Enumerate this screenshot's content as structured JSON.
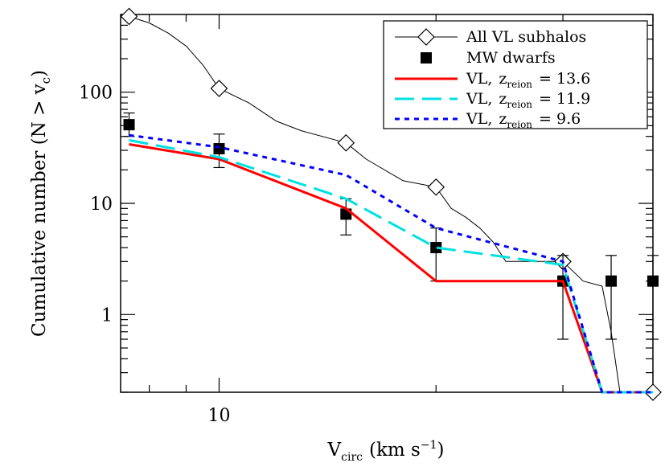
{
  "chart_data": {
    "type": "line",
    "xscale": "log",
    "yscale": "log",
    "xlim": [
      7.3,
      40
    ],
    "ylim": [
      0.2,
      500
    ],
    "xlabel": {
      "main": "V",
      "sub": "circ",
      "rest": "(km s",
      "sup": "−1",
      "end": ")"
    },
    "ylabel": {
      "main": "Cumulative number (N > v",
      "sub": "c",
      "end": ")"
    },
    "xticks": [
      {
        "value": 10,
        "label": "10"
      }
    ],
    "yticks": [
      {
        "value": 1,
        "label": "1"
      },
      {
        "value": 10,
        "label": "10"
      },
      {
        "value": 100,
        "label": "100"
      }
    ],
    "legend": {
      "position": "top-right",
      "entries": [
        {
          "id": "all",
          "label": "All VL subhalos"
        },
        {
          "id": "mw",
          "label": "MW dwarfs"
        },
        {
          "id": "z136",
          "label": "VL,",
          "sub": "reion",
          "rest": "= 13.6"
        },
        {
          "id": "z119",
          "label": "VL,",
          "sub": "reion",
          "rest": "= 11.9"
        },
        {
          "id": "z96",
          "label": "VL,",
          "sub": "reion",
          "rest": "= 9.6"
        }
      ]
    },
    "series": [
      {
        "id": "all",
        "label": "All VL subhalos",
        "color": "#000000",
        "style": "thin-step-line",
        "line": [
          [
            7.5,
            480
          ],
          [
            8.0,
            420
          ],
          [
            8.5,
            340
          ],
          [
            9.0,
            260
          ],
          [
            9.5,
            175
          ],
          [
            10,
            108
          ],
          [
            11,
            80
          ],
          [
            12,
            55
          ],
          [
            13,
            45
          ],
          [
            15,
            35
          ],
          [
            16,
            25
          ],
          [
            18,
            16
          ],
          [
            20,
            14
          ],
          [
            21,
            9
          ],
          [
            22,
            7.5
          ],
          [
            23,
            6
          ],
          [
            24,
            4.5
          ],
          [
            25,
            3
          ],
          [
            28,
            3
          ],
          [
            30,
            3
          ],
          [
            32,
            2
          ],
          [
            34,
            1.8
          ],
          [
            35,
            0.7
          ],
          [
            36,
            0.2
          ],
          [
            40,
            0.2
          ]
        ],
        "markers": {
          "shape": "diamond-open",
          "points": [
            [
              7.5,
              480
            ],
            [
              10,
              108
            ],
            [
              15,
              35
            ],
            [
              20,
              14
            ],
            [
              30,
              3
            ],
            [
              40,
              0.2
            ]
          ]
        }
      },
      {
        "id": "mw",
        "label": "MW dwarfs",
        "color": "#000000",
        "style": "square-markers",
        "points": [
          {
            "x": 7.5,
            "y": 51,
            "err": [
              40,
              65
            ]
          },
          {
            "x": 10,
            "y": 31,
            "err": [
              21,
              42
            ]
          },
          {
            "x": 15,
            "y": 8,
            "err": [
              5.2,
              11
            ]
          },
          {
            "x": 20,
            "y": 4,
            "err": [
              2,
              6
            ]
          },
          {
            "x": 30,
            "y": 2,
            "err": [
              0.6,
              3.4
            ]
          },
          {
            "x": 35,
            "y": 2,
            "err": [
              0.6,
              3.4
            ]
          },
          {
            "x": 40,
            "y": 2,
            "err": [
              0.6,
              3.4
            ]
          }
        ]
      },
      {
        "id": "z136",
        "label": "VL, zreion = 13.6",
        "color": "#ff0000",
        "style": "solid",
        "line": [
          [
            7.5,
            34
          ],
          [
            10,
            25
          ],
          [
            15,
            9
          ],
          [
            20,
            2
          ],
          [
            30,
            2
          ],
          [
            34,
            0.2
          ],
          [
            40,
            0.2
          ]
        ]
      },
      {
        "id": "z119",
        "label": "VL, zreion = 11.9",
        "color": "#00e0e0",
        "style": "long-dash",
        "line": [
          [
            7.5,
            37
          ],
          [
            10,
            26
          ],
          [
            15,
            11
          ],
          [
            20,
            4
          ],
          [
            30,
            2.8
          ],
          [
            34,
            0.2
          ],
          [
            40,
            0.2
          ]
        ]
      },
      {
        "id": "z96",
        "label": "VL, zreion = 9.6",
        "color": "#0000ff",
        "style": "short-dash",
        "line": [
          [
            7.5,
            41
          ],
          [
            10,
            32
          ],
          [
            15,
            18
          ],
          [
            20,
            6
          ],
          [
            30,
            3
          ],
          [
            34,
            0.2
          ],
          [
            40,
            0.2
          ]
        ]
      }
    ]
  }
}
